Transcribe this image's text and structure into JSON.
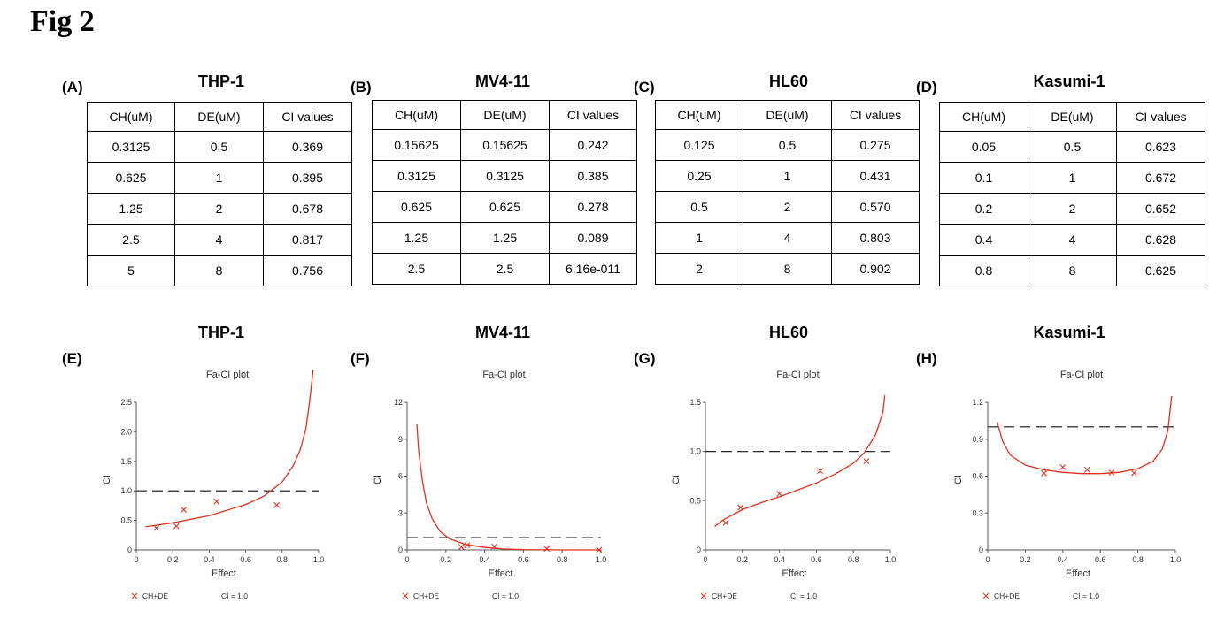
{
  "figure_label": "Fig 2",
  "tables": [
    {
      "label": "(A)",
      "title": "THP-1",
      "headers": [
        "CH(uM)",
        "DE(uM)",
        "CI values"
      ],
      "rows": [
        [
          "0.3125",
          "0.5",
          "0.369"
        ],
        [
          "0.625",
          "1",
          "0.395"
        ],
        [
          "1.25",
          "2",
          "0.678"
        ],
        [
          "2.5",
          "4",
          "0.817"
        ],
        [
          "5",
          "8",
          "0.756"
        ]
      ]
    },
    {
      "label": "(B)",
      "title": "MV4-11",
      "headers": [
        "CH(uM)",
        "DE(uM)",
        "CI values"
      ],
      "rows": [
        [
          "0.15625",
          "0.15625",
          "0.242"
        ],
        [
          "0.3125",
          "0.3125",
          "0.385"
        ],
        [
          "0.625",
          "0.625",
          "0.278"
        ],
        [
          "1.25",
          "1.25",
          "0.089"
        ],
        [
          "2.5",
          "2.5",
          "6.16e-011"
        ]
      ]
    },
    {
      "label": "(C)",
      "title": "HL60",
      "headers": [
        "CH(uM)",
        "DE(uM)",
        "CI values"
      ],
      "rows": [
        [
          "0.125",
          "0.5",
          "0.275"
        ],
        [
          "0.25",
          "1",
          "0.431"
        ],
        [
          "0.5",
          "2",
          "0.570"
        ],
        [
          "1",
          "4",
          "0.803"
        ],
        [
          "2",
          "8",
          "0.902"
        ]
      ]
    },
    {
      "label": "(D)",
      "title": "Kasumi-1",
      "headers": [
        "CH(uM)",
        "DE(uM)",
        "CI values"
      ],
      "rows": [
        [
          "0.05",
          "0.5",
          "0.623"
        ],
        [
          "0.1",
          "1",
          "0.672"
        ],
        [
          "0.2",
          "2",
          "0.652"
        ],
        [
          "0.4",
          "4",
          "0.628"
        ],
        [
          "0.8",
          "8",
          "0.625"
        ]
      ]
    }
  ],
  "chart_data": [
    {
      "type": "scatter",
      "label": "(E)",
      "title": "THP-1",
      "plot_title": "Fa-CI plot",
      "xlabel": "Effect",
      "ylabel": "CI",
      "xlim": [
        0,
        1.0
      ],
      "ylim": [
        0,
        2.5
      ],
      "xticks": [
        "0",
        "0.2",
        "0.4",
        "0.6",
        "0.8",
        "1.0"
      ],
      "xtick_values": [
        0,
        0.2,
        0.4,
        0.6,
        0.8,
        1.0
      ],
      "yticks": [
        "0",
        "0.5",
        "1.0",
        "1.5",
        "2.0",
        "2.5"
      ],
      "ytick_values": [
        0,
        0.5,
        1.0,
        1.5,
        2.0,
        2.5
      ],
      "reference_line": 1.0,
      "points": [
        [
          0.11,
          0.37
        ],
        [
          0.22,
          0.4
        ],
        [
          0.26,
          0.68
        ],
        [
          0.44,
          0.82
        ],
        [
          0.77,
          0.76
        ]
      ],
      "curve": [
        [
          0.05,
          0.39
        ],
        [
          0.2,
          0.46
        ],
        [
          0.4,
          0.58
        ],
        [
          0.6,
          0.77
        ],
        [
          0.7,
          0.91
        ],
        [
          0.8,
          1.15
        ],
        [
          0.86,
          1.42
        ],
        [
          0.9,
          1.7
        ],
        [
          0.93,
          2.05
        ],
        [
          0.95,
          2.5
        ],
        [
          0.97,
          3.05
        ]
      ],
      "legend": [
        "CH+DE",
        "CI = 1.0"
      ]
    },
    {
      "type": "scatter",
      "label": "(F)",
      "title": "MV4-11",
      "plot_title": "Fa-CI plot",
      "xlabel": "Effect",
      "ylabel": "CI",
      "xlim": [
        0,
        1.0
      ],
      "ylim": [
        0,
        12
      ],
      "xticks": [
        "0",
        "0.2",
        "0.4",
        "0.6",
        "0.8",
        "1.0"
      ],
      "xtick_values": [
        0,
        0.2,
        0.4,
        0.6,
        0.8,
        1.0
      ],
      "yticks": [
        "0",
        "3",
        "6",
        "9",
        "12"
      ],
      "ytick_values": [
        0,
        3,
        6,
        9,
        12
      ],
      "reference_line": 1.0,
      "points": [
        [
          0.28,
          0.24
        ],
        [
          0.31,
          0.385
        ],
        [
          0.45,
          0.28
        ],
        [
          0.72,
          0.09
        ],
        [
          0.99,
          0.0
        ]
      ],
      "curve": [
        [
          0.05,
          10.2
        ],
        [
          0.06,
          8.0
        ],
        [
          0.08,
          5.5
        ],
        [
          0.1,
          3.8
        ],
        [
          0.13,
          2.5
        ],
        [
          0.17,
          1.5
        ],
        [
          0.22,
          0.9
        ],
        [
          0.3,
          0.45
        ],
        [
          0.4,
          0.2
        ],
        [
          0.5,
          0.08
        ],
        [
          0.6,
          0.03
        ],
        [
          0.8,
          0.0
        ],
        [
          1.0,
          0.0
        ]
      ],
      "legend": [
        "CH+DE",
        "CI = 1.0"
      ]
    },
    {
      "type": "scatter",
      "label": "(G)",
      "title": "HL60",
      "plot_title": "Fa-CI plot",
      "xlabel": "Effect",
      "ylabel": "CI",
      "xlim": [
        0,
        1.0
      ],
      "ylim": [
        0,
        1.5
      ],
      "xticks": [
        "0",
        "0.2",
        "0.4",
        "0.6",
        "0.8",
        "1.0"
      ],
      "xtick_values": [
        0,
        0.2,
        0.4,
        0.6,
        0.8,
        1.0
      ],
      "yticks": [
        "0",
        "0.5",
        "1.0",
        "1.5"
      ],
      "ytick_values": [
        0,
        0.5,
        1.0,
        1.5
      ],
      "reference_line": 1.0,
      "points": [
        [
          0.11,
          0.275
        ],
        [
          0.19,
          0.431
        ],
        [
          0.4,
          0.57
        ],
        [
          0.62,
          0.803
        ],
        [
          0.87,
          0.902
        ]
      ],
      "curve": [
        [
          0.05,
          0.24
        ],
        [
          0.1,
          0.31
        ],
        [
          0.2,
          0.41
        ],
        [
          0.3,
          0.48
        ],
        [
          0.4,
          0.54
        ],
        [
          0.5,
          0.61
        ],
        [
          0.6,
          0.68
        ],
        [
          0.7,
          0.77
        ],
        [
          0.8,
          0.88
        ],
        [
          0.86,
          0.99
        ],
        [
          0.92,
          1.17
        ],
        [
          0.96,
          1.4
        ],
        [
          0.97,
          1.57
        ]
      ],
      "legend": [
        "CH+DE",
        "CI = 1.0"
      ]
    },
    {
      "type": "scatter",
      "label": "(H)",
      "title": "Kasumi-1",
      "plot_title": "Fa-CI plot",
      "xlabel": "Effect",
      "ylabel": "CI",
      "xlim": [
        0,
        1.0
      ],
      "ylim": [
        0,
        1.2
      ],
      "xticks": [
        "0",
        "0.2",
        "0.4",
        "0.6",
        "0.8",
        "1.0"
      ],
      "xtick_values": [
        0,
        0.2,
        0.4,
        0.6,
        0.8,
        1.0
      ],
      "yticks": [
        "0",
        "0.3",
        "0.6",
        "0.9",
        "1.2"
      ],
      "ytick_values": [
        0,
        0.3,
        0.6,
        0.9,
        1.2
      ],
      "reference_line": 1.0,
      "points": [
        [
          0.3,
          0.623
        ],
        [
          0.4,
          0.672
        ],
        [
          0.53,
          0.652
        ],
        [
          0.66,
          0.628
        ],
        [
          0.78,
          0.625
        ]
      ],
      "curve": [
        [
          0.05,
          1.04
        ],
        [
          0.08,
          0.88
        ],
        [
          0.12,
          0.77
        ],
        [
          0.2,
          0.69
        ],
        [
          0.3,
          0.65
        ],
        [
          0.4,
          0.63
        ],
        [
          0.5,
          0.62
        ],
        [
          0.6,
          0.62
        ],
        [
          0.7,
          0.63
        ],
        [
          0.8,
          0.66
        ],
        [
          0.88,
          0.72
        ],
        [
          0.93,
          0.82
        ],
        [
          0.96,
          0.97
        ],
        [
          0.98,
          1.25
        ]
      ],
      "legend": [
        "CH+DE",
        "CI = 1.0"
      ]
    }
  ]
}
